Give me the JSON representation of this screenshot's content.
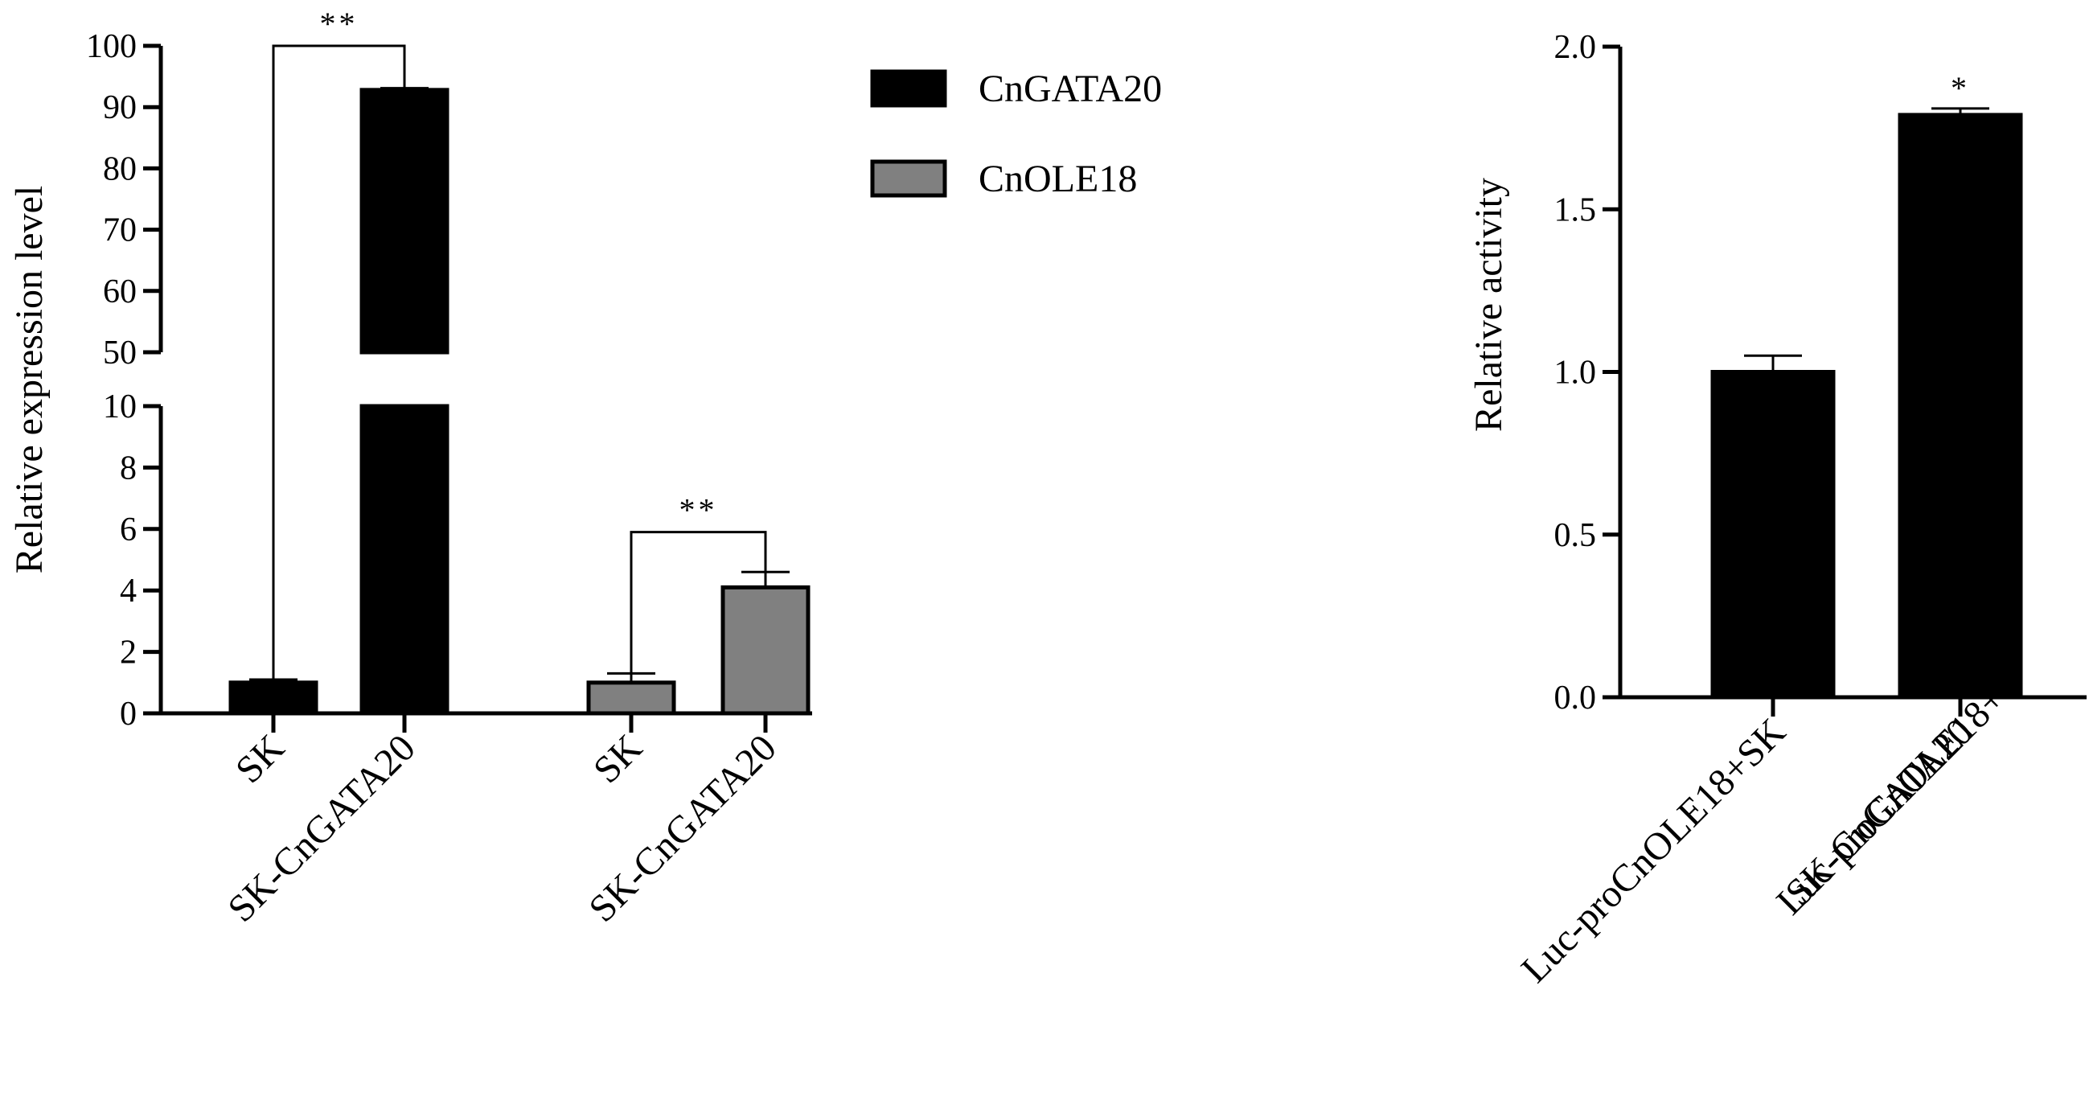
{
  "chart_data": [
    {
      "type": "bar",
      "ylabel": "Relative expression level",
      "y_axis_break": {
        "lower": [
          0,
          10
        ],
        "upper": [
          50,
          100
        ]
      },
      "lower_ticks": [
        0,
        2,
        4,
        6,
        8,
        10
      ],
      "upper_ticks": [
        50,
        60,
        70,
        80,
        90,
        100
      ],
      "legend": {
        "position": "top-right",
        "entries": [
          {
            "name": "CnGATA20",
            "color": "#000000"
          },
          {
            "name": "CnOLE18",
            "color": "#808080"
          }
        ]
      },
      "groups": [
        {
          "series": "CnGATA20",
          "color": "#000000",
          "bars": [
            {
              "label": "SK",
              "value": 1.0,
              "error": 0.1
            },
            {
              "label": "SK-CnGATA20",
              "value": 92.8,
              "error": 0.3
            }
          ],
          "significance": "**"
        },
        {
          "series": "CnOLE18",
          "color": "#808080",
          "bars": [
            {
              "label": "SK",
              "value": 1.0,
              "error": 0.3
            },
            {
              "label": "SK-CnGATA20",
              "value": 4.1,
              "error": 0.5
            }
          ],
          "significance": "**"
        }
      ]
    },
    {
      "type": "bar",
      "ylabel": "Relative activity",
      "ylim": [
        0,
        2.0
      ],
      "ticks": [
        "0.0",
        "0.5",
        "1.0",
        "1.5",
        "2.0"
      ],
      "color": "#000000",
      "bars": [
        {
          "label_lines": [
            "Luc-proCnOLE18+SK"
          ],
          "value": 1.0,
          "error": 0.05
        },
        {
          "label_lines": [
            "Luc-proCnOLE18+",
            "SK-CnGATA20"
          ],
          "value": 1.79,
          "error": 0.02,
          "significance": "*"
        }
      ]
    }
  ]
}
